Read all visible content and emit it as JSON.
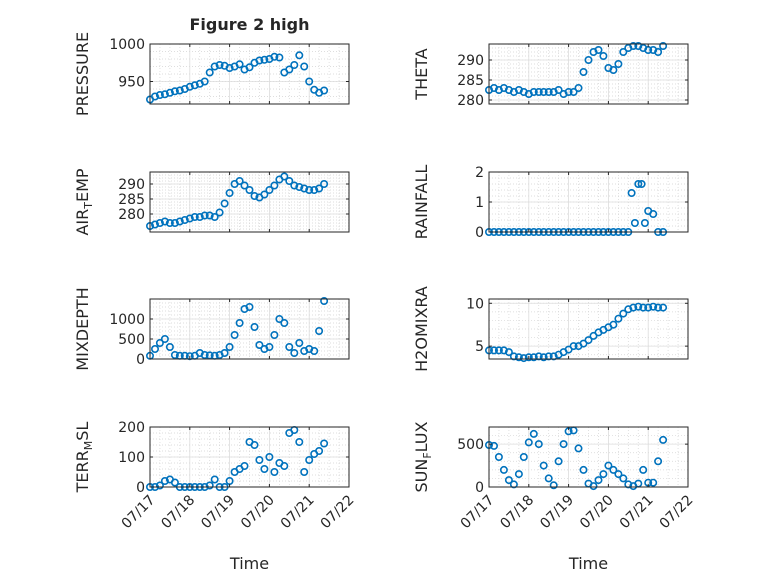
{
  "figure": {
    "title": "Figure 2 high"
  },
  "chart_data": [
    {
      "type": "scatter",
      "title": "Figure 2 high",
      "xlabel": "",
      "ylabel": "PRESSURE",
      "xlim": [
        "2021-07-17",
        "2021-07-22"
      ],
      "ylim": [
        920,
        1000
      ],
      "yticks": [
        950,
        1000
      ],
      "grid": true,
      "minor_grid": true,
      "series": [
        {
          "color": "#0072BD",
          "marker": "circle-open",
          "x": [
            "2021-07-17 00:00",
            "2021-07-17 03:00",
            "2021-07-17 06:00",
            "2021-07-17 09:00",
            "2021-07-17 12:00",
            "2021-07-17 15:00",
            "2021-07-17 18:00",
            "2021-07-17 21:00",
            "2021-07-18 00:00",
            "2021-07-18 03:00",
            "2021-07-18 06:00",
            "2021-07-18 09:00",
            "2021-07-18 12:00",
            "2021-07-18 15:00",
            "2021-07-18 18:00",
            "2021-07-18 21:00",
            "2021-07-19 00:00",
            "2021-07-19 03:00",
            "2021-07-19 06:00",
            "2021-07-19 09:00",
            "2021-07-19 12:00",
            "2021-07-19 15:00",
            "2021-07-19 18:00",
            "2021-07-19 21:00",
            "2021-07-20 00:00",
            "2021-07-20 03:00",
            "2021-07-20 06:00",
            "2021-07-20 09:00",
            "2021-07-20 12:00",
            "2021-07-20 15:00",
            "2021-07-20 18:00",
            "2021-07-20 21:00",
            "2021-07-21 00:00",
            "2021-07-21 03:00",
            "2021-07-21 06:00",
            "2021-07-21 09:00"
          ],
          "y": [
            926,
            930,
            932,
            933,
            935,
            937,
            938,
            940,
            943,
            945,
            947,
            950,
            962,
            970,
            972,
            971,
            968,
            970,
            973,
            966,
            969,
            975,
            978,
            979,
            980,
            983,
            982,
            962,
            966,
            972,
            985,
            970,
            950,
            939,
            935,
            938
          ]
        }
      ]
    },
    {
      "type": "scatter",
      "xlabel": "",
      "ylabel": "THETA",
      "xlim": [
        "2021-07-17",
        "2021-07-22"
      ],
      "ylim": [
        279,
        294
      ],
      "yticks": [
        280,
        285,
        290
      ],
      "grid": true,
      "minor_grid": true,
      "series": [
        {
          "color": "#0072BD",
          "marker": "circle-open",
          "x": [
            "2021-07-17 00:00",
            "2021-07-17 03:00",
            "2021-07-17 06:00",
            "2021-07-17 09:00",
            "2021-07-17 12:00",
            "2021-07-17 15:00",
            "2021-07-17 18:00",
            "2021-07-17 21:00",
            "2021-07-18 00:00",
            "2021-07-18 03:00",
            "2021-07-18 06:00",
            "2021-07-18 09:00",
            "2021-07-18 12:00",
            "2021-07-18 15:00",
            "2021-07-18 18:00",
            "2021-07-18 21:00",
            "2021-07-19 00:00",
            "2021-07-19 03:00",
            "2021-07-19 06:00",
            "2021-07-19 09:00",
            "2021-07-19 12:00",
            "2021-07-19 15:00",
            "2021-07-19 18:00",
            "2021-07-19 21:00",
            "2021-07-20 00:00",
            "2021-07-20 03:00",
            "2021-07-20 06:00",
            "2021-07-20 09:00",
            "2021-07-20 12:00",
            "2021-07-20 15:00",
            "2021-07-20 18:00",
            "2021-07-20 21:00",
            "2021-07-21 00:00",
            "2021-07-21 03:00",
            "2021-07-21 06:00",
            "2021-07-21 09:00"
          ],
          "y": [
            282.5,
            283,
            282.5,
            283,
            282.5,
            282,
            282.5,
            282,
            281.5,
            282,
            282,
            282,
            282,
            282,
            282.5,
            281.5,
            282,
            282,
            283,
            287,
            290,
            292,
            292.5,
            291,
            288,
            287.5,
            289,
            292,
            293,
            293.5,
            293.5,
            293,
            292.5,
            292.5,
            292,
            293.5
          ]
        }
      ]
    },
    {
      "type": "scatter",
      "xlabel": "",
      "ylabel": "AIR_TEMP",
      "xlim": [
        "2021-07-17",
        "2021-07-22"
      ],
      "ylim": [
        274,
        294
      ],
      "yticks": [
        280,
        285,
        290
      ],
      "grid": true,
      "minor_grid": true,
      "series": [
        {
          "color": "#0072BD",
          "marker": "circle-open",
          "x": [
            "2021-07-17 00:00",
            "2021-07-17 03:00",
            "2021-07-17 06:00",
            "2021-07-17 09:00",
            "2021-07-17 12:00",
            "2021-07-17 15:00",
            "2021-07-17 18:00",
            "2021-07-17 21:00",
            "2021-07-18 00:00",
            "2021-07-18 03:00",
            "2021-07-18 06:00",
            "2021-07-18 09:00",
            "2021-07-18 12:00",
            "2021-07-18 15:00",
            "2021-07-18 18:00",
            "2021-07-18 21:00",
            "2021-07-19 00:00",
            "2021-07-19 03:00",
            "2021-07-19 06:00",
            "2021-07-19 09:00",
            "2021-07-19 12:00",
            "2021-07-19 15:00",
            "2021-07-19 18:00",
            "2021-07-19 21:00",
            "2021-07-20 00:00",
            "2021-07-20 03:00",
            "2021-07-20 06:00",
            "2021-07-20 09:00",
            "2021-07-20 12:00",
            "2021-07-20 15:00",
            "2021-07-20 18:00",
            "2021-07-20 21:00",
            "2021-07-21 00:00",
            "2021-07-21 03:00",
            "2021-07-21 06:00",
            "2021-07-21 09:00"
          ],
          "y": [
            276,
            276.5,
            277,
            277.5,
            277,
            277,
            277.5,
            278,
            278.5,
            279,
            279,
            279.5,
            279.5,
            279,
            280.5,
            283.5,
            287,
            290,
            291,
            289.5,
            288,
            286,
            285.5,
            286.5,
            288,
            289.5,
            291.5,
            292.5,
            291,
            289.5,
            289,
            288.5,
            288,
            288,
            288.5,
            290
          ]
        }
      ]
    },
    {
      "type": "scatter",
      "xlabel": "",
      "ylabel": "RAINFALL",
      "xlim": [
        "2021-07-17",
        "2021-07-22"
      ],
      "ylim": [
        0,
        2
      ],
      "yticks": [
        0,
        1,
        2
      ],
      "grid": true,
      "minor_grid": true,
      "series": [
        {
          "color": "#0072BD",
          "marker": "circle-open",
          "x": [
            "2021-07-17 00:00",
            "2021-07-17 03:00",
            "2021-07-17 06:00",
            "2021-07-17 09:00",
            "2021-07-17 12:00",
            "2021-07-17 15:00",
            "2021-07-17 18:00",
            "2021-07-17 21:00",
            "2021-07-18 00:00",
            "2021-07-18 03:00",
            "2021-07-18 06:00",
            "2021-07-18 09:00",
            "2021-07-18 12:00",
            "2021-07-18 15:00",
            "2021-07-18 18:00",
            "2021-07-18 21:00",
            "2021-07-19 00:00",
            "2021-07-19 03:00",
            "2021-07-19 06:00",
            "2021-07-19 09:00",
            "2021-07-19 12:00",
            "2021-07-19 15:00",
            "2021-07-19 18:00",
            "2021-07-19 21:00",
            "2021-07-20 00:00",
            "2021-07-20 03:00",
            "2021-07-20 06:00",
            "2021-07-20 09:00",
            "2021-07-20 12:00",
            "2021-07-20 14:00",
            "2021-07-20 16:00",
            "2021-07-20 18:00",
            "2021-07-20 20:00",
            "2021-07-20 22:00",
            "2021-07-21 00:00",
            "2021-07-21 03:00",
            "2021-07-21 06:00",
            "2021-07-21 09:00"
          ],
          "y": [
            0,
            0,
            0,
            0,
            0,
            0,
            0,
            0,
            0,
            0,
            0,
            0,
            0,
            0,
            0,
            0,
            0,
            0,
            0,
            0,
            0,
            0,
            0,
            0,
            0,
            0,
            0,
            0,
            0,
            1.3,
            0.3,
            1.6,
            1.6,
            0.3,
            0.7,
            0.6,
            0,
            0
          ]
        }
      ]
    },
    {
      "type": "scatter",
      "xlabel": "",
      "ylabel": "MIXDEPTH",
      "xlim": [
        "2021-07-17",
        "2021-07-22"
      ],
      "ylim": [
        0,
        1500
      ],
      "yticks": [
        0,
        500,
        1000
      ],
      "grid": true,
      "minor_grid": true,
      "series": [
        {
          "color": "#0072BD",
          "marker": "circle-open",
          "x": [
            "2021-07-17 00:00",
            "2021-07-17 03:00",
            "2021-07-17 06:00",
            "2021-07-17 09:00",
            "2021-07-17 12:00",
            "2021-07-17 15:00",
            "2021-07-17 18:00",
            "2021-07-17 21:00",
            "2021-07-18 00:00",
            "2021-07-18 03:00",
            "2021-07-18 06:00",
            "2021-07-18 09:00",
            "2021-07-18 12:00",
            "2021-07-18 15:00",
            "2021-07-18 18:00",
            "2021-07-18 21:00",
            "2021-07-19 00:00",
            "2021-07-19 03:00",
            "2021-07-19 06:00",
            "2021-07-19 09:00",
            "2021-07-19 12:00",
            "2021-07-19 15:00",
            "2021-07-19 18:00",
            "2021-07-19 21:00",
            "2021-07-20 00:00",
            "2021-07-20 03:00",
            "2021-07-20 06:00",
            "2021-07-20 09:00",
            "2021-07-20 12:00",
            "2021-07-20 15:00",
            "2021-07-20 18:00",
            "2021-07-20 21:00",
            "2021-07-21 00:00",
            "2021-07-21 03:00",
            "2021-07-21 06:00",
            "2021-07-21 09:00"
          ],
          "y": [
            80,
            250,
            400,
            500,
            300,
            100,
            80,
            80,
            70,
            80,
            150,
            100,
            90,
            80,
            100,
            150,
            300,
            600,
            900,
            1250,
            1300,
            800,
            350,
            250,
            300,
            600,
            1000,
            900,
            300,
            150,
            400,
            200,
            250,
            200,
            700,
            1450
          ]
        }
      ]
    },
    {
      "type": "scatter",
      "xlabel": "",
      "ylabel": "H2OMIXRA",
      "xlim": [
        "2021-07-17",
        "2021-07-22"
      ],
      "ylim": [
        3.5,
        10.5
      ],
      "yticks": [
        5,
        10
      ],
      "grid": true,
      "minor_grid": true,
      "series": [
        {
          "color": "#0072BD",
          "marker": "circle-open",
          "x": [
            "2021-07-17 00:00",
            "2021-07-17 03:00",
            "2021-07-17 06:00",
            "2021-07-17 09:00",
            "2021-07-17 12:00",
            "2021-07-17 15:00",
            "2021-07-17 18:00",
            "2021-07-17 21:00",
            "2021-07-18 00:00",
            "2021-07-18 03:00",
            "2021-07-18 06:00",
            "2021-07-18 09:00",
            "2021-07-18 12:00",
            "2021-07-18 15:00",
            "2021-07-18 18:00",
            "2021-07-18 21:00",
            "2021-07-19 00:00",
            "2021-07-19 03:00",
            "2021-07-19 06:00",
            "2021-07-19 09:00",
            "2021-07-19 12:00",
            "2021-07-19 15:00",
            "2021-07-19 18:00",
            "2021-07-19 21:00",
            "2021-07-20 00:00",
            "2021-07-20 03:00",
            "2021-07-20 06:00",
            "2021-07-20 09:00",
            "2021-07-20 12:00",
            "2021-07-20 15:00",
            "2021-07-20 18:00",
            "2021-07-20 21:00",
            "2021-07-21 00:00",
            "2021-07-21 03:00",
            "2021-07-21 06:00",
            "2021-07-21 09:00"
          ],
          "y": [
            4.5,
            4.5,
            4.5,
            4.5,
            4.3,
            3.8,
            3.7,
            3.6,
            3.7,
            3.7,
            3.8,
            3.7,
            3.8,
            3.8,
            4,
            4.3,
            4.6,
            5,
            5,
            5.3,
            5.7,
            6.2,
            6.6,
            6.9,
            7.2,
            7.5,
            8.2,
            8.8,
            9.3,
            9.5,
            9.6,
            9.5,
            9.5,
            9.6,
            9.5,
            9.5
          ]
        }
      ]
    },
    {
      "type": "scatter",
      "xlabel": "Time",
      "ylabel": "TERR_MSL",
      "xlim": [
        "2021-07-17",
        "2021-07-22"
      ],
      "ylim": [
        0,
        200
      ],
      "yticks": [
        0,
        100,
        200
      ],
      "xticklabels": [
        "07/17",
        "07/18",
        "07/19",
        "07/20",
        "07/21",
        "07/22"
      ],
      "grid": true,
      "minor_grid": true,
      "series": [
        {
          "color": "#0072BD",
          "marker": "circle-open",
          "x": [
            "2021-07-17 00:00",
            "2021-07-17 03:00",
            "2021-07-17 06:00",
            "2021-07-17 09:00",
            "2021-07-17 12:00",
            "2021-07-17 15:00",
            "2021-07-17 18:00",
            "2021-07-17 21:00",
            "2021-07-18 00:00",
            "2021-07-18 03:00",
            "2021-07-18 06:00",
            "2021-07-18 09:00",
            "2021-07-18 12:00",
            "2021-07-18 15:00",
            "2021-07-18 18:00",
            "2021-07-18 21:00",
            "2021-07-19 00:00",
            "2021-07-19 03:00",
            "2021-07-19 06:00",
            "2021-07-19 09:00",
            "2021-07-19 12:00",
            "2021-07-19 15:00",
            "2021-07-19 18:00",
            "2021-07-19 21:00",
            "2021-07-20 00:00",
            "2021-07-20 03:00",
            "2021-07-20 06:00",
            "2021-07-20 09:00",
            "2021-07-20 12:00",
            "2021-07-20 15:00",
            "2021-07-20 18:00",
            "2021-07-20 21:00",
            "2021-07-21 00:00",
            "2021-07-21 03:00",
            "2021-07-21 06:00",
            "2021-07-21 09:00"
          ],
          "y": [
            0,
            0,
            5,
            20,
            25,
            15,
            0,
            0,
            0,
            0,
            0,
            0,
            5,
            25,
            0,
            0,
            20,
            50,
            60,
            70,
            150,
            140,
            90,
            60,
            100,
            50,
            80,
            70,
            180,
            190,
            150,
            50,
            90,
            110,
            120,
            145
          ]
        }
      ]
    },
    {
      "type": "scatter",
      "xlabel": "Time",
      "ylabel": "SUN_FLUX",
      "xlim": [
        "2021-07-17",
        "2021-07-22"
      ],
      "ylim": [
        0,
        700
      ],
      "yticks": [
        0,
        500
      ],
      "xticklabels": [
        "07/17",
        "07/18",
        "07/19",
        "07/20",
        "07/21",
        "07/22"
      ],
      "grid": true,
      "minor_grid": true,
      "series": [
        {
          "color": "#0072BD",
          "marker": "circle-open",
          "x": [
            "2021-07-17 00:00",
            "2021-07-17 03:00",
            "2021-07-17 06:00",
            "2021-07-17 09:00",
            "2021-07-17 12:00",
            "2021-07-17 15:00",
            "2021-07-17 18:00",
            "2021-07-17 21:00",
            "2021-07-18 00:00",
            "2021-07-18 03:00",
            "2021-07-18 06:00",
            "2021-07-18 09:00",
            "2021-07-18 12:00",
            "2021-07-18 15:00",
            "2021-07-18 18:00",
            "2021-07-18 21:00",
            "2021-07-19 00:00",
            "2021-07-19 03:00",
            "2021-07-19 06:00",
            "2021-07-19 09:00",
            "2021-07-19 12:00",
            "2021-07-19 15:00",
            "2021-07-19 18:00",
            "2021-07-19 21:00",
            "2021-07-20 00:00",
            "2021-07-20 03:00",
            "2021-07-20 06:00",
            "2021-07-20 09:00",
            "2021-07-20 12:00",
            "2021-07-20 15:00",
            "2021-07-20 18:00",
            "2021-07-20 21:00",
            "2021-07-21 00:00",
            "2021-07-21 03:00",
            "2021-07-21 06:00",
            "2021-07-21 09:00"
          ],
          "y": [
            490,
            480,
            350,
            200,
            80,
            30,
            150,
            350,
            520,
            620,
            500,
            250,
            100,
            20,
            300,
            500,
            650,
            660,
            450,
            200,
            40,
            10,
            80,
            150,
            250,
            200,
            150,
            100,
            30,
            10,
            40,
            200,
            50,
            50,
            300,
            550
          ]
        }
      ]
    }
  ]
}
